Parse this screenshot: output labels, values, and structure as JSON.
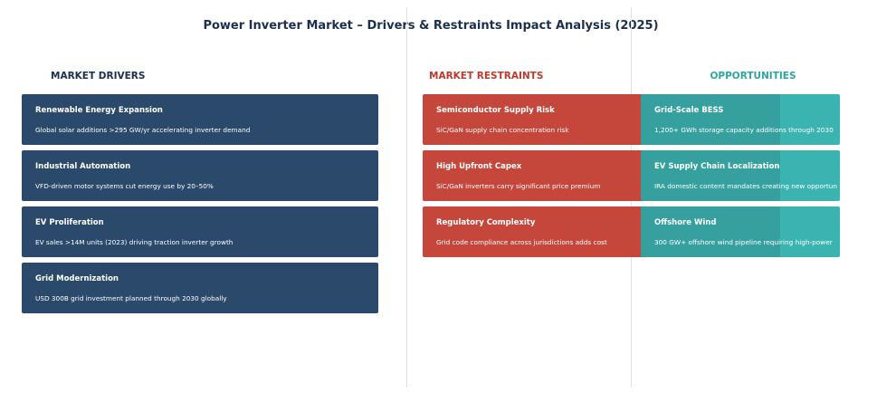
{
  "title": "Power Inverter Market – Drivers & Restraints Impact Analysis (2025)",
  "columns": [
    {
      "heading": "MARKET DRIVERS",
      "items": [
        {
          "title": "Renewable Energy Expansion",
          "desc": "Global solar additions >295 GW/yr accelerating inverter demand"
        },
        {
          "title": "Industrial Automation",
          "desc": "VFD-driven motor systems cut energy use by 20–50%"
        },
        {
          "title": "EV Proliferation",
          "desc": "EV sales >14M units (2023) driving traction inverter growth"
        },
        {
          "title": "Grid Modernization",
          "desc": "USD 300B grid investment planned through 2030 globally"
        }
      ]
    },
    {
      "heading": "MARKET RESTRAINTS",
      "items": [
        {
          "title": "Semiconductor Supply Risk",
          "desc": "SiC/GaN supply chain concentration risk"
        },
        {
          "title": "High Upfront Capex",
          "desc": "SiC/GaN inverters carry significant price premium"
        },
        {
          "title": "Regulatory Complexity",
          "desc": "Grid code compliance across jurisdictions adds cost"
        }
      ]
    },
    {
      "heading": "OPPORTUNITIES",
      "items": [
        {
          "title": "Grid-Scale BESS",
          "desc": "1,200+ GWh storage capacity additions through 2030"
        },
        {
          "title": "EV Supply Chain Localization",
          "desc": "IRA domestic content mandates creating new opportun"
        },
        {
          "title": "Offshore Wind",
          "desc": "300 GW+ offshore wind pipeline requiring high-power"
        }
      ]
    }
  ]
}
